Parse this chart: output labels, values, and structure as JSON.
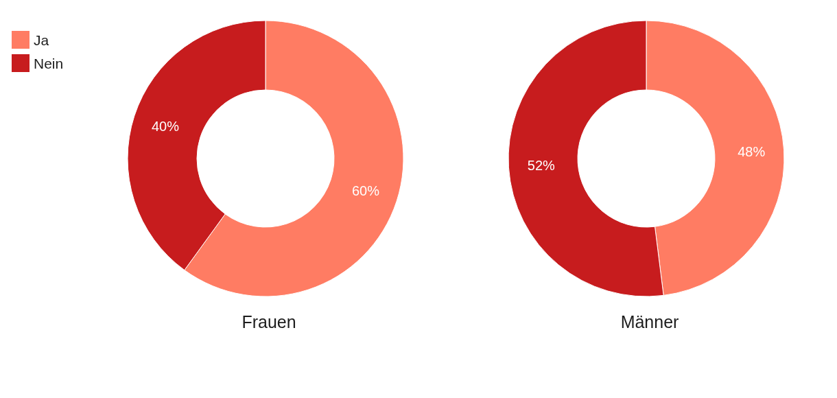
{
  "chart_data": {
    "type": "donut",
    "categories": [
      "Ja",
      "Nein"
    ],
    "colors": [
      "#ff7c63",
      "#c71c1e"
    ],
    "legend": "top left",
    "series": [
      {
        "name": "Frauen",
        "values": [
          60,
          40
        ],
        "value_labels": [
          "60%",
          "40%"
        ]
      },
      {
        "name": "Männer",
        "values": [
          48,
          52
        ],
        "value_labels": [
          "48%",
          "52%"
        ]
      }
    ]
  }
}
